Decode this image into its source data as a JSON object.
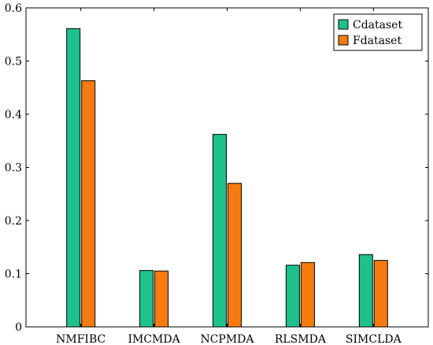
{
  "chart_data": {
    "type": "bar",
    "categories": [
      "NMFIBC",
      "IMCMDA",
      "NCPMDA",
      "RLSMDA",
      "SIMCLDA"
    ],
    "series": [
      {
        "name": "Cdataset",
        "values": [
          0.561,
          0.106,
          0.362,
          0.116,
          0.136
        ],
        "color": "#1ec08c"
      },
      {
        "name": "Fdataset",
        "values": [
          0.463,
          0.105,
          0.27,
          0.121,
          0.125
        ],
        "color": "#f77b0f"
      }
    ],
    "yticks": [
      0,
      0.1,
      0.2,
      0.3,
      0.4,
      0.5,
      0.6
    ],
    "ylim": [
      0,
      0.6
    ],
    "grid": false,
    "legend_position": "top-right",
    "title": "",
    "xlabel": "",
    "ylabel": ""
  }
}
